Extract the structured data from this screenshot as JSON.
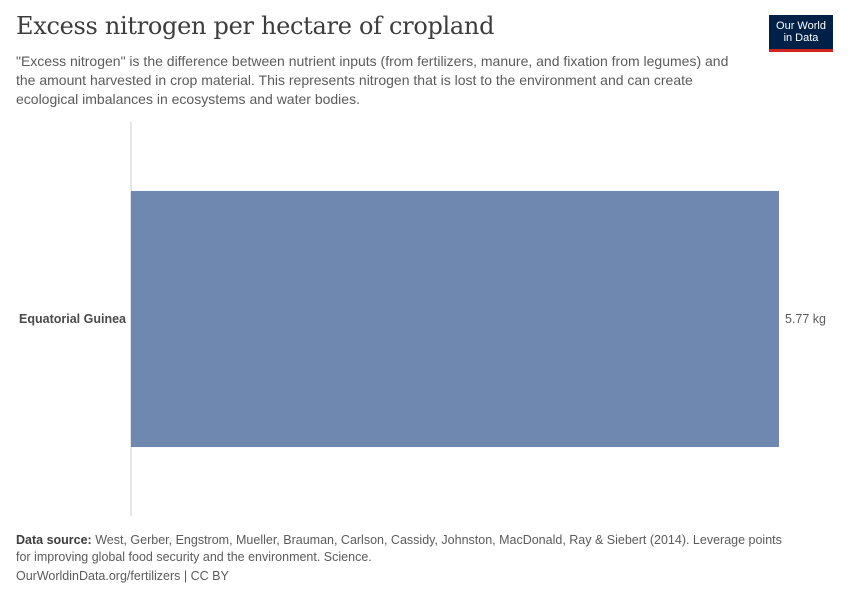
{
  "header": {
    "title": "Excess nitrogen per hectare of cropland",
    "subtitle": "\"Excess nitrogen\" is the difference between nutrient inputs (from fertilizers, manure, and fixation from legumes) and the amount harvested in crop material. This represents nitrogen that is lost to the environment and can create ecological imbalances in ecosystems and water bodies."
  },
  "logo": {
    "line1": "Our World",
    "line2": "in Data",
    "bg_color": "#002147",
    "accent_color": "#ce261e"
  },
  "chart_data": {
    "type": "bar",
    "orientation": "horizontal",
    "categories": [
      "Equatorial Guinea"
    ],
    "values": [
      5.77
    ],
    "value_labels": [
      "5.77 kg"
    ],
    "bar_color": "#6f88b0",
    "xlim": [
      0,
      5.77
    ],
    "grid": false
  },
  "footer": {
    "source_label": "Data source:",
    "source_text": "West, Gerber, Engstrom, Mueller, Brauman, Carlson, Cassidy, Johnston, MacDonald, Ray & Siebert (2014). Leverage points for improving global food security and the environment. Science.",
    "url_text": "OurWorldinData.org/fertilizers | CC BY"
  }
}
